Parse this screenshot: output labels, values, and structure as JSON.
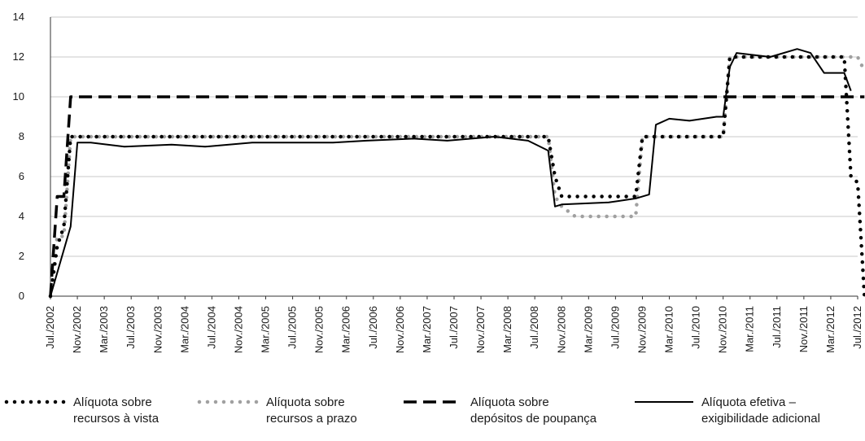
{
  "chart_data": {
    "type": "line",
    "ylim": [
      0,
      14
    ],
    "y_ticks": [
      0,
      2,
      4,
      6,
      8,
      10,
      12,
      14
    ],
    "grid": true,
    "legend_position": "bottom",
    "x_start": "2002-07",
    "x_end": "2012-07",
    "x_tick_labels": [
      "Jul./2002",
      "Nov./2002",
      "Mar./2003",
      "Jul./2003",
      "Nov./2003",
      "Mar./2004",
      "Jul./2004",
      "Nov./2004",
      "Mar./2005",
      "Jul./2005",
      "Nov./2005",
      "Mar./2006",
      "Jul./2006",
      "Nov./2006",
      "Mar./2007",
      "Jul./2007",
      "Nov./2007",
      "Mar./2008",
      "Jul./2008",
      "Nov./2008",
      "Mar./2009",
      "Jul./2009",
      "Nov./2009",
      "Mar./2010",
      "Jul./2010",
      "Nov./2010",
      "Mar./2011",
      "Jul./2011",
      "Nov./2011",
      "Mar./2012",
      "Jul./2012"
    ],
    "series": [
      {
        "name": "Alíquota sobre recursos à vista",
        "legend_lines": [
          "Alíquota sobre",
          "recursos à vista"
        ],
        "style": "dotted",
        "color": "#000000",
        "points": [
          [
            "2002-07",
            0
          ],
          [
            "2002-08",
            2.5
          ],
          [
            "2002-09",
            3.5
          ],
          [
            "2002-10",
            8
          ],
          [
            "2002-11",
            8
          ],
          [
            "2003-01",
            8
          ],
          [
            "2008-09",
            8
          ],
          [
            "2008-10",
            6
          ],
          [
            "2008-11",
            5
          ],
          [
            "2009-10",
            5
          ],
          [
            "2009-11",
            8
          ],
          [
            "2010-11",
            8
          ],
          [
            "2010-12",
            12
          ],
          [
            "2011-01",
            12
          ],
          [
            "2012-05",
            12
          ],
          [
            "2012-06",
            6
          ],
          [
            "2012-07",
            5.7
          ],
          [
            "2012-08",
            0
          ]
        ]
      },
      {
        "name": "Alíquota sobre recursos a prazo",
        "legend_lines": [
          "Alíquota sobre",
          "recursos a prazo"
        ],
        "style": "dotted-gray",
        "color": "#a0a0a0",
        "points": [
          [
            "2002-07",
            0
          ],
          [
            "2002-08",
            3
          ],
          [
            "2002-09",
            3
          ],
          [
            "2002-10",
            8
          ],
          [
            "2002-11",
            8
          ],
          [
            "2008-09",
            8
          ],
          [
            "2008-10",
            5
          ],
          [
            "2008-11",
            4.5
          ],
          [
            "2009-01",
            4
          ],
          [
            "2009-10",
            4
          ],
          [
            "2009-11",
            8
          ],
          [
            "2010-11",
            8
          ],
          [
            "2010-12",
            12
          ],
          [
            "2011-01",
            12
          ],
          [
            "2012-06",
            12
          ],
          [
            "2012-07",
            12
          ],
          [
            "2012-08",
            11.3
          ]
        ]
      },
      {
        "name": "Alíquota sobre depósitos de poupança",
        "legend_lines": [
          "Alíquota sobre",
          "depósitos de poupança"
        ],
        "style": "dashed",
        "color": "#000000",
        "points": [
          [
            "2002-07",
            0
          ],
          [
            "2002-08",
            5
          ],
          [
            "2002-09",
            5
          ],
          [
            "2002-10",
            10
          ],
          [
            "2012-08",
            10
          ]
        ]
      },
      {
        "name": "Alíquota efetiva – exigibilidade adicional",
        "legend_lines": [
          "Alíquota efetiva –",
          "exigibilidade adicional"
        ],
        "style": "solid",
        "color": "#000000",
        "points": [
          [
            "2002-07",
            0
          ],
          [
            "2002-10",
            3.5
          ],
          [
            "2002-11",
            7.7
          ],
          [
            "2003-01",
            7.7
          ],
          [
            "2003-06",
            7.5
          ],
          [
            "2004-01",
            7.6
          ],
          [
            "2004-06",
            7.5
          ],
          [
            "2005-01",
            7.7
          ],
          [
            "2005-06",
            7.7
          ],
          [
            "2006-01",
            7.7
          ],
          [
            "2006-06",
            7.8
          ],
          [
            "2007-01",
            7.9
          ],
          [
            "2007-06",
            7.8
          ],
          [
            "2008-01",
            8
          ],
          [
            "2008-06",
            7.8
          ],
          [
            "2008-09",
            7.3
          ],
          [
            "2008-10",
            4.5
          ],
          [
            "2008-11",
            4.6
          ],
          [
            "2009-06",
            4.7
          ],
          [
            "2009-10",
            4.9
          ],
          [
            "2009-12",
            5.1
          ],
          [
            "2010-01",
            8.6
          ],
          [
            "2010-03",
            8.9
          ],
          [
            "2010-06",
            8.8
          ],
          [
            "2010-10",
            9
          ],
          [
            "2010-11",
            9
          ],
          [
            "2010-12",
            11.5
          ],
          [
            "2011-01",
            12.2
          ],
          [
            "2011-06",
            12
          ],
          [
            "2011-10",
            12.4
          ],
          [
            "2011-12",
            12.2
          ],
          [
            "2012-02",
            11.2
          ],
          [
            "2012-05",
            11.2
          ],
          [
            "2012-06",
            10.3
          ]
        ]
      }
    ]
  }
}
